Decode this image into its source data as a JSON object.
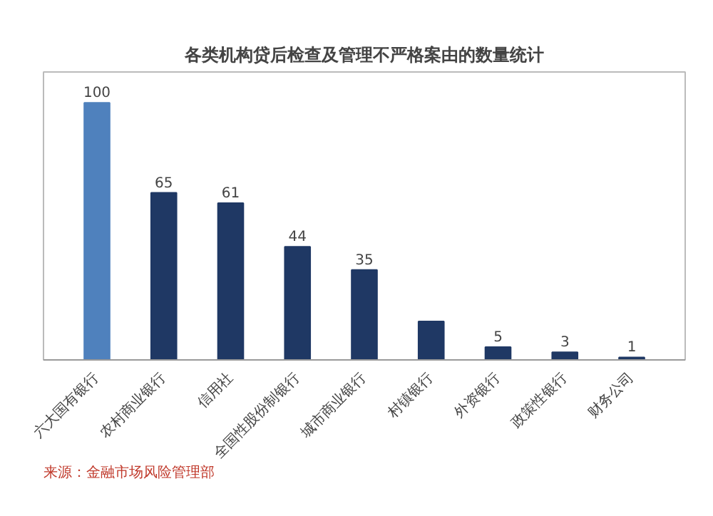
{
  "chart_data": {
    "type": "bar",
    "title": "各类机构贷后检查及管理不严格案由的数量统计",
    "categories": [
      "六大国有银行",
      "农村商业银行",
      "信用社",
      "全国性股份制银行",
      "城市商业银行",
      "村镇银行",
      "外资银行",
      "政策性银行",
      "财务公司"
    ],
    "values": [
      100,
      65,
      61,
      44,
      35,
      15,
      5,
      3,
      1
    ],
    "colors": [
      "#4f81bd",
      "#1f3864",
      "#1f3864",
      "#1f3864",
      "#1f3864",
      "#1f3864",
      "#1f3864",
      "#1f3864",
      "#1f3864"
    ],
    "value_labels": [
      "100",
      "65",
      "61",
      "44",
      "35",
      null,
      "5",
      "3",
      "1"
    ],
    "annotations": [
      "来源：金融市场风险管理部"
    ]
  }
}
